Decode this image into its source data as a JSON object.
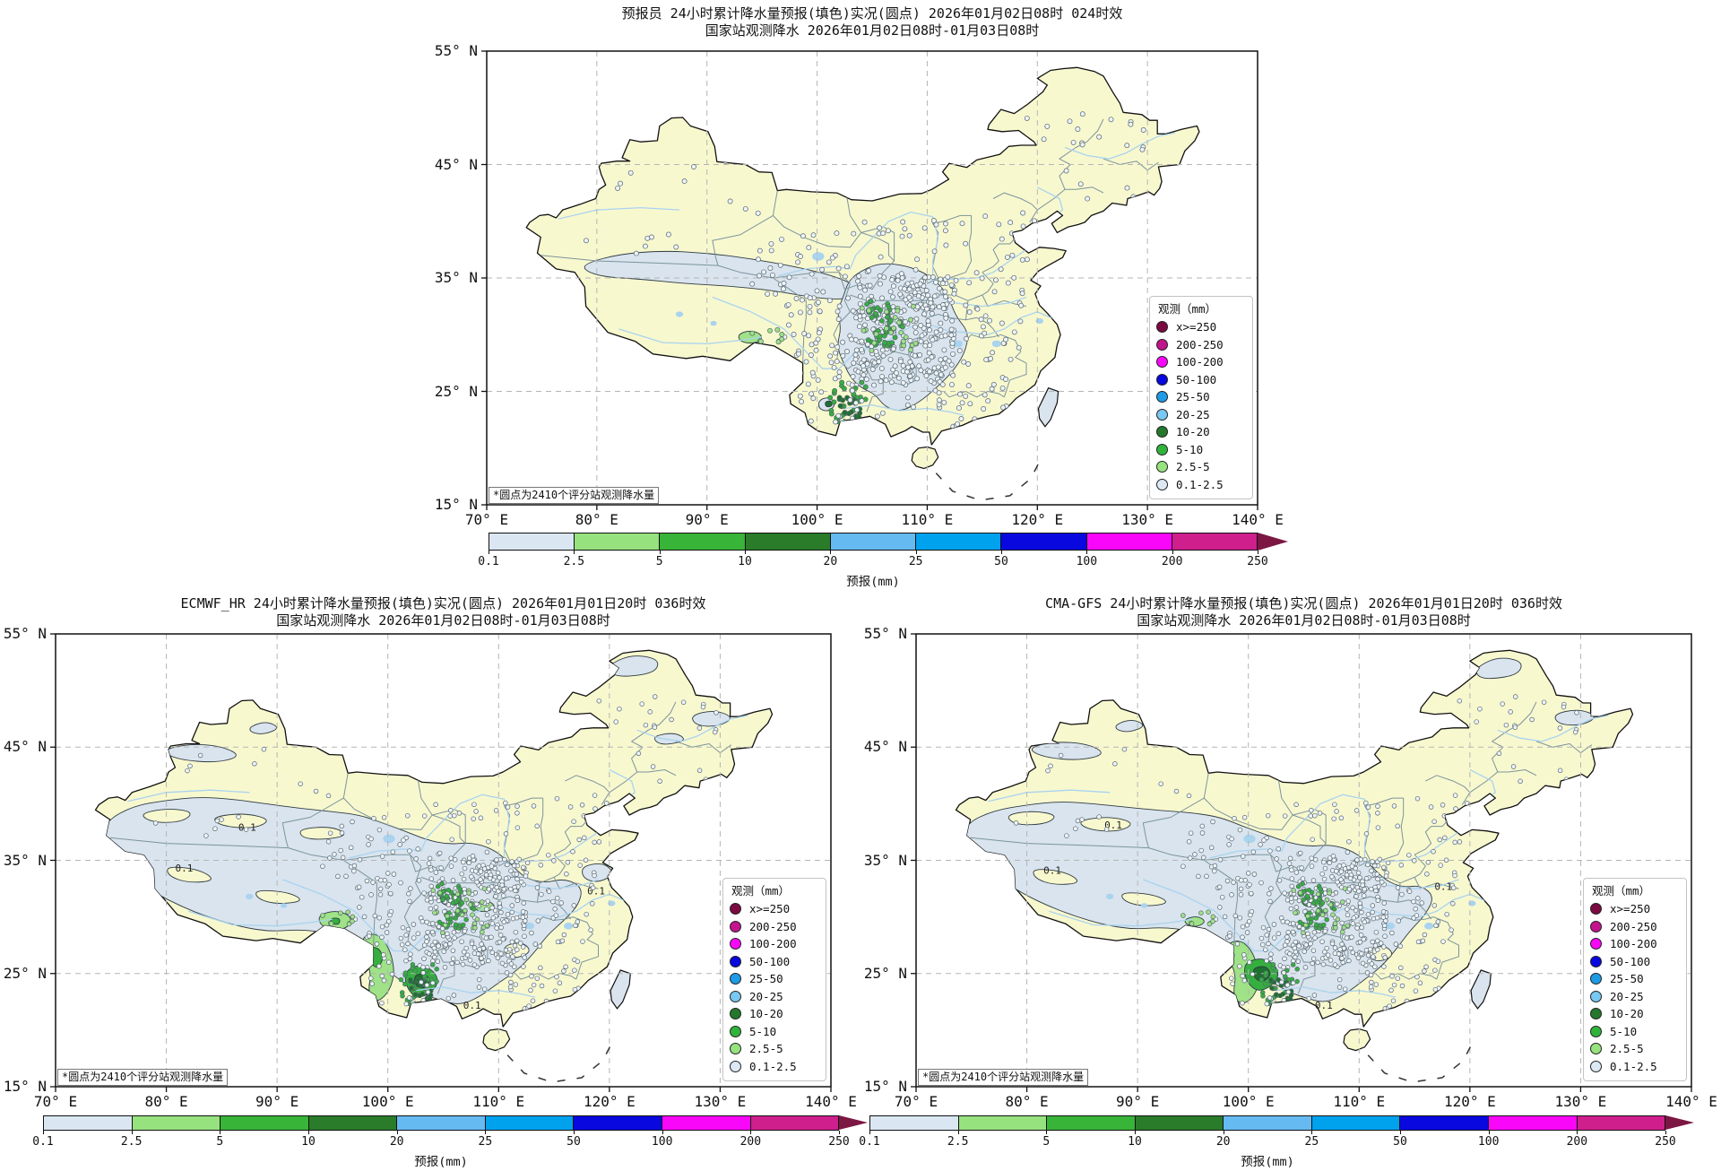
{
  "panels": [
    {
      "id": "forecaster",
      "title_line1": "预报员 24小时累计降水量预报(填色)实况(圆点)  2026年01月02日08时  024时效",
      "title_line2": "国家站观测降水  2026年01月02日08时-01月03日08时",
      "note": "*圆点为2410个评分站观测降水量"
    },
    {
      "id": "ecmwf_hr",
      "title_line1": "ECMWF_HR 24小时累计降水量预报(填色)实况(圆点)  2026年01月01日20时  036时效",
      "title_line2": "国家站观测降水  2026年01月02日08时-01月03日08时",
      "note": "*圆点为2410个评分站观测降水量"
    },
    {
      "id": "cma_gfs",
      "title_line1": "CMA-GFS 24小时累计降水量预报(填色)实况(圆点)  2026年01月01日20时  036时效",
      "title_line2": "国家站观测降水  2026年01月02日08时-01月03日08时",
      "note": "*圆点为2410个评分站观测降水量"
    }
  ],
  "axes": {
    "lat_ticks": [
      "55° N",
      "45° N",
      "35° N",
      "25° N",
      "15° N"
    ],
    "lon_ticks": [
      "70° E",
      "80° E",
      "90° E",
      "100° E",
      "110° E",
      "120° E",
      "130° E",
      "140° E"
    ]
  },
  "legend": {
    "title": "观测（mm）",
    "items": [
      {
        "label": "x>=250",
        "color": "#7C0A42"
      },
      {
        "label": "200-250",
        "color": "#C2148C"
      },
      {
        "label": "100-200",
        "color": "#F907F9"
      },
      {
        "label": "50-100",
        "color": "#0808DF"
      },
      {
        "label": "25-50",
        "color": "#1E9BE6"
      },
      {
        "label": "20-25",
        "color": "#79C8F2"
      },
      {
        "label": "10-20",
        "color": "#23782B"
      },
      {
        "label": "5-10",
        "color": "#2FB43B"
      },
      {
        "label": "2.5-5",
        "color": "#96E27F"
      },
      {
        "label": "0.1-2.5",
        "color": "#DCE9F4"
      }
    ]
  },
  "colorbar": {
    "label": "预报(mm)",
    "ticks": [
      "0.1",
      "2.5",
      "5",
      "10",
      "20",
      "25",
      "50",
      "100",
      "200",
      "250"
    ],
    "colors": [
      "#DAE7F3",
      "#96E27F",
      "#38B438",
      "#2A7C2A",
      "#66BAF2",
      "#00A2EE",
      "#0808DF",
      "#F907F9",
      "#CE1F8D"
    ],
    "arrow_color": "#7C1642"
  },
  "map": {
    "contour_label": "0.1",
    "colors": {
      "land": "#F8F8CF",
      "sea": "#FFFFFF",
      "fill_light": "#D9E4EE",
      "green_light": "#9FE287",
      "green_mid": "#35AF3F",
      "green_dark": "#1E7030",
      "province": "#7C949B",
      "river": "#A9D3EF",
      "grid": "#B5B5B5",
      "coast": "#111111",
      "dot_white": "#EDF3F8",
      "dot_outline": "#55656D"
    }
  }
}
